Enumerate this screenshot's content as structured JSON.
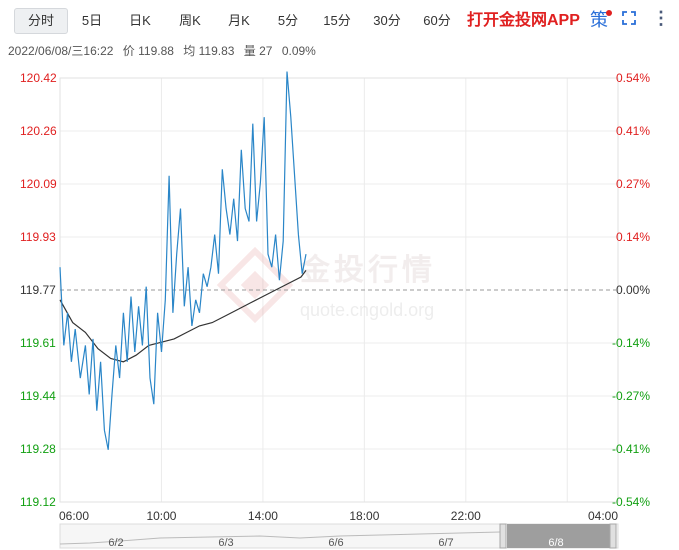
{
  "tabs": [
    {
      "label": "分时",
      "active": true
    },
    {
      "label": "5日"
    },
    {
      "label": "日K"
    },
    {
      "label": "周K"
    },
    {
      "label": "月K"
    },
    {
      "label": "5分"
    },
    {
      "label": "15分"
    },
    {
      "label": "30分"
    },
    {
      "label": "60分"
    }
  ],
  "app_button": "打开金投网APP",
  "ce_label": "策",
  "icons": {
    "strategy": "strategy-icon",
    "fullscreen": "fullscreen-icon",
    "more": "more-vertical-icon"
  },
  "info": {
    "datetime": "2022/06/08/三16:22",
    "price": "价 119.88",
    "avg": "均 119.83",
    "volume": "量 27",
    "change": "0.09%"
  },
  "watermark": {
    "brand": "金投行情",
    "url": "quote.cngold.org"
  },
  "colors": {
    "up": "#e02020",
    "down": "#12a012",
    "price_line": "#2a86c8",
    "avg_line": "#333333",
    "baseline": "#999999"
  },
  "chart_data": {
    "type": "line",
    "y_ticks": [
      "120.42",
      "120.26",
      "120.09",
      "119.93",
      "119.77",
      "119.61",
      "119.44",
      "119.28",
      "119.12"
    ],
    "pct_ticks": [
      "0.54%",
      "0.41%",
      "0.27%",
      "0.14%",
      "0.00%",
      "-0.14%",
      "-0.27%",
      "-0.41%",
      "-0.54%"
    ],
    "ylim": [
      119.12,
      120.42
    ],
    "base_price": 119.77,
    "x_ticks": [
      "06:00",
      "10:00",
      "14:00",
      "18:00",
      "22:00",
      "04:00"
    ],
    "x_range_hours": [
      6,
      28
    ],
    "series": [
      {
        "type": "price",
        "x": [
          6.0,
          6.15,
          6.3,
          6.45,
          6.6,
          6.8,
          7.0,
          7.15,
          7.3,
          7.45,
          7.6,
          7.75,
          7.9,
          8.05,
          8.2,
          8.35,
          8.5,
          8.65,
          8.8,
          8.95,
          9.1,
          9.25,
          9.4,
          9.55,
          9.7,
          9.85,
          10.0,
          10.15,
          10.3,
          10.45,
          10.6,
          10.75,
          10.9,
          11.05,
          11.2,
          11.35,
          11.5,
          11.65,
          11.8,
          11.95,
          12.1,
          12.25,
          12.4,
          12.55,
          12.7,
          12.85,
          13.0,
          13.15,
          13.3,
          13.45,
          13.6,
          13.75,
          13.9,
          14.05,
          14.2,
          14.35,
          14.5,
          14.65,
          14.8,
          14.95,
          15.1,
          15.25,
          15.4,
          15.55,
          15.7
        ],
        "values": [
          119.84,
          119.6,
          119.7,
          119.55,
          119.65,
          119.5,
          119.6,
          119.45,
          119.62,
          119.4,
          119.55,
          119.34,
          119.28,
          119.45,
          119.6,
          119.5,
          119.7,
          119.55,
          119.75,
          119.58,
          119.72,
          119.6,
          119.78,
          119.5,
          119.42,
          119.7,
          119.58,
          119.74,
          120.12,
          119.7,
          119.88,
          120.02,
          119.72,
          119.84,
          119.66,
          119.74,
          119.7,
          119.82,
          119.78,
          119.84,
          119.94,
          119.82,
          120.14,
          120.02,
          119.94,
          120.05,
          119.92,
          120.2,
          120.02,
          119.98,
          120.28,
          119.98,
          120.1,
          120.3,
          119.88,
          119.84,
          119.94,
          119.8,
          119.92,
          120.44,
          120.3,
          120.12,
          119.94,
          119.82,
          119.88
        ]
      },
      {
        "type": "average",
        "x": [
          6.0,
          6.5,
          7.0,
          7.5,
          8.0,
          8.5,
          9.0,
          9.5,
          10.0,
          10.5,
          11.0,
          11.5,
          12.0,
          12.5,
          13.0,
          13.5,
          14.0,
          14.5,
          15.0,
          15.5,
          15.7
        ],
        "values": [
          119.74,
          119.67,
          119.64,
          119.59,
          119.56,
          119.55,
          119.57,
          119.6,
          119.61,
          119.62,
          119.64,
          119.66,
          119.67,
          119.69,
          119.71,
          119.73,
          119.75,
          119.77,
          119.79,
          119.81,
          119.83
        ]
      }
    ],
    "navigator": {
      "dates": [
        "6/2",
        "6/3",
        "6/6",
        "6/7",
        "6/8"
      ],
      "selected": "6/8"
    }
  }
}
